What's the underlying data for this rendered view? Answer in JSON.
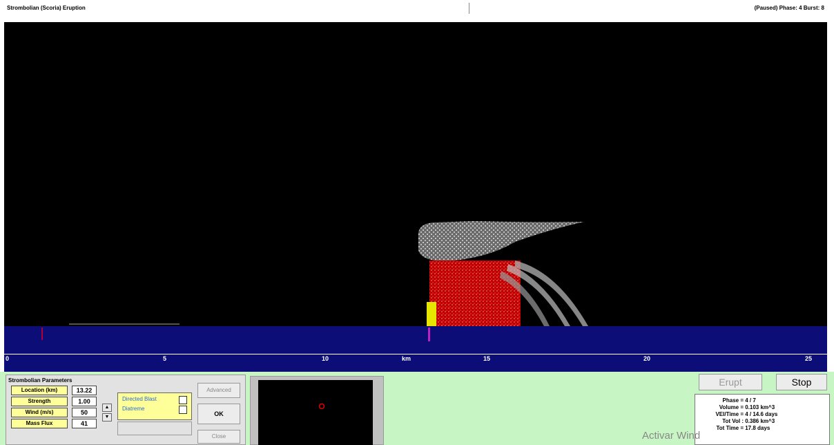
{
  "window": {
    "title_left": "Strombolian (Scoria) Eruption",
    "title_right": "(Paused) Phase: 4  Burst: 8"
  },
  "scale": {
    "ticks": [
      "0",
      "5",
      "10",
      "15",
      "20",
      "25"
    ],
    "unit": "km"
  },
  "params": {
    "title": "Strombolian Parameters",
    "rows": [
      {
        "label": "Location (km)",
        "value": "13.22"
      },
      {
        "label": "Strength",
        "value": "1.00"
      },
      {
        "label": "Wind (m/s)",
        "value": "50"
      },
      {
        "label": "Mass Flux",
        "value": "41"
      }
    ],
    "flags": [
      {
        "label": "Directed Blast",
        "checked": false
      },
      {
        "label": "Diatreme",
        "checked": false
      }
    ],
    "advanced_label": "Advanced",
    "ok_label": "OK",
    "close_label": "Close"
  },
  "controls": {
    "erupt_label": "Erupt",
    "stop_label": "Stop"
  },
  "stats": [
    {
      "label": "Phase =",
      "value": "4 / 7"
    },
    {
      "label": "Volume =",
      "value": "0.103 km^3"
    },
    {
      "label": "VEI/Time =",
      "value": "4 / 14.6 days"
    },
    {
      "label": "Tot Vol :",
      "value": "0.386 km^3"
    },
    {
      "label": "Tot Time =",
      "value": "17.8 days"
    }
  ],
  "watermark": "Activar Wind",
  "colors": {
    "sky": "#000000",
    "ground": "#0d0d78",
    "panel": "#c7f5c3",
    "label_bg": "#ffff99",
    "lava": "#d01010",
    "ash": "#cfcfcf"
  }
}
